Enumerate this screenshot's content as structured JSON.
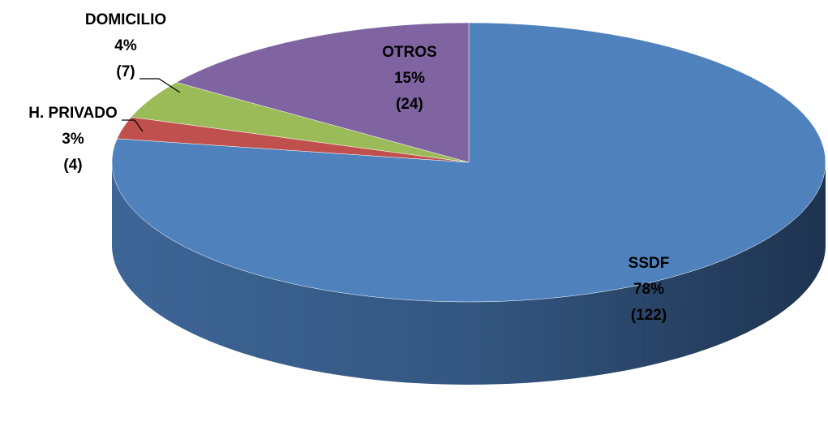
{
  "chart_data": {
    "type": "pie",
    "categories": [
      "SSDF",
      "H. PRIVADO",
      "DOMICILIO",
      "OTROS"
    ],
    "values": [
      78,
      3,
      4,
      15
    ],
    "value_labels": [
      "78%",
      "3%",
      "4%",
      "15%"
    ],
    "counts": [
      122,
      4,
      7,
      24
    ],
    "count_labels": [
      "(122)",
      "(4)",
      "(7)",
      "(24)"
    ],
    "colors": [
      "#4f81bd",
      "#c0504d",
      "#9bbb59",
      "#8064a2"
    ]
  }
}
